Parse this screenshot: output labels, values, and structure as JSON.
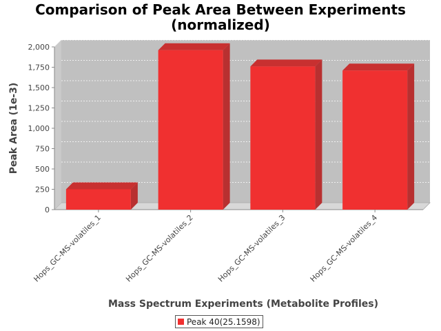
{
  "chart_data": {
    "type": "bar",
    "title": "Comparison of Peak Area Between Experiments",
    "subtitle": "(normalized)",
    "xlabel": "Mass Spectrum Experiments (Metabolite Profiles)",
    "ylabel": "Peak Area (1e-3)",
    "categories": [
      "Hops_GC-MS-volatiles_1",
      "Hops_GC-MS-volatiles_2",
      "Hops_GC-MS-volatiles_3",
      "Hops_GC-MS-volatiles_4"
    ],
    "series": [
      {
        "name": "Peak 40(25.1598)",
        "values": [
          250,
          1960,
          1760,
          1710
        ],
        "color": "#f03030"
      }
    ],
    "ylim": [
      0,
      2000
    ],
    "yticks": [
      0,
      250,
      500,
      750,
      1000,
      1250,
      1500,
      1750,
      2000
    ],
    "ytick_labels": [
      "0",
      "250",
      "500",
      "750",
      "1,000",
      "1,250",
      "1,500",
      "1,750",
      "2,000"
    ],
    "grid": true,
    "legend_position": "bottom",
    "style": "3d",
    "plot_background": "#c0c0c0"
  }
}
